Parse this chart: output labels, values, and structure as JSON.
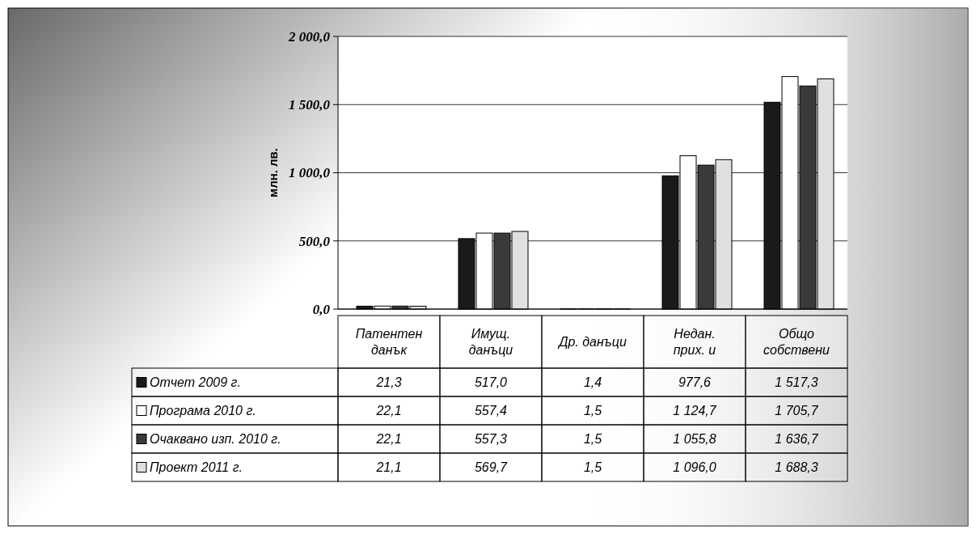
{
  "chart_data": {
    "type": "bar",
    "ylabel": "млн. лв.",
    "categories": [
      "Патентен данък",
      "Имущ. данъци",
      "Др. данъци",
      "Недан. прих. и",
      "Общо собствени"
    ],
    "series": [
      {
        "name": "Отчет 2009 г.",
        "color": "#1a1a1a",
        "values": [
          21.3,
          517.0,
          1.4,
          977.6,
          1517.3
        ],
        "value_labels": [
          "21,3",
          "517,0",
          "1,4",
          "977,6",
          "1 517,3"
        ]
      },
      {
        "name": "Програма 2010 г.",
        "color": "#ffffff",
        "values": [
          22.1,
          557.4,
          1.5,
          1124.7,
          1705.7
        ],
        "value_labels": [
          "22,1",
          "557,4",
          "1,5",
          "1 124,7",
          "1 705,7"
        ]
      },
      {
        "name": "Очаквано изп. 2010 г.",
        "color": "#3a3a3a",
        "values": [
          22.1,
          557.3,
          1.5,
          1055.8,
          1636.7
        ],
        "value_labels": [
          "22,1",
          "557,3",
          "1,5",
          "1 055,8",
          "1 636,7"
        ]
      },
      {
        "name": "Проект 2011 г.",
        "color": "#e0e0e0",
        "values": [
          21.1,
          569.7,
          1.5,
          1096.0,
          1688.3
        ],
        "value_labels": [
          "21,1",
          "569,7",
          "1,5",
          "1 096,0",
          "1 688,3"
        ]
      }
    ],
    "ylim": [
      0,
      2000
    ],
    "yticks": [
      {
        "value": 0,
        "label": "0,0"
      },
      {
        "value": 500,
        "label": "500,0"
      },
      {
        "value": 1000,
        "label": "1 000,0"
      },
      {
        "value": 1500,
        "label": "1 500,0"
      },
      {
        "value": 2000,
        "label": "2 000,0"
      }
    ],
    "grid": "y",
    "legend": "bottom"
  }
}
